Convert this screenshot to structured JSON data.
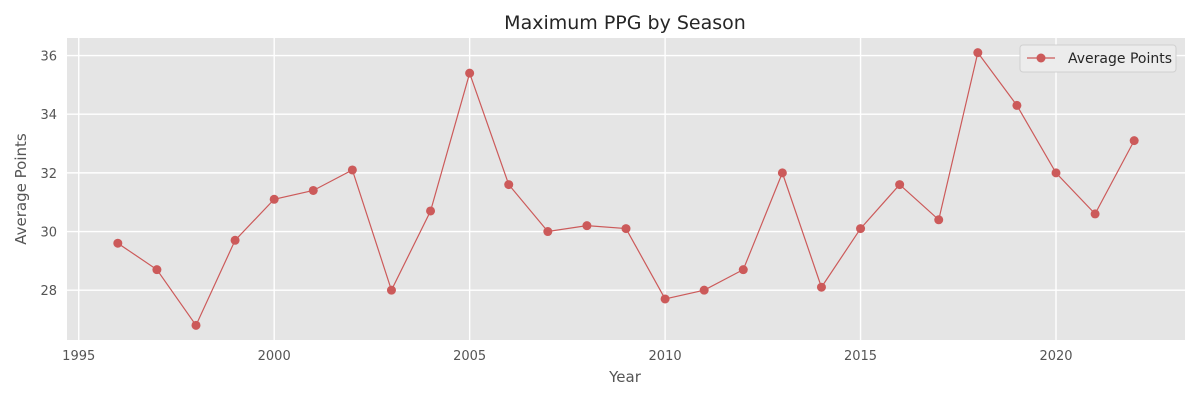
{
  "chart_data": {
    "type": "line",
    "title": "Maximum PPG by Season",
    "xlabel": "Year",
    "ylabel": "Average Points",
    "xlim": [
      1994.7,
      2023.3
    ],
    "ylim": [
      26.3,
      36.6
    ],
    "xticks": [
      1995,
      2000,
      2005,
      2010,
      2015,
      2020
    ],
    "yticks": [
      28,
      30,
      32,
      34,
      36
    ],
    "grid": true,
    "legend_position": "top-right",
    "colors": {
      "background": "#e5e5e5",
      "grid": "#ffffff",
      "series": "#cc5a5a"
    },
    "series": [
      {
        "name": "Average Points",
        "marker": "circle",
        "x": [
          1996,
          1997,
          1998,
          1999,
          2000,
          2001,
          2002,
          2003,
          2004,
          2005,
          2006,
          2007,
          2008,
          2009,
          2010,
          2011,
          2012,
          2013,
          2014,
          2015,
          2016,
          2017,
          2018,
          2019,
          2020,
          2021,
          2022
        ],
        "y": [
          29.6,
          28.7,
          26.8,
          29.7,
          31.1,
          31.4,
          32.1,
          28.0,
          30.7,
          35.4,
          31.6,
          30.0,
          30.2,
          30.1,
          27.7,
          28.0,
          28.7,
          32.0,
          28.1,
          30.1,
          31.6,
          30.4,
          36.1,
          34.3,
          32.0,
          30.6,
          33.1
        ]
      }
    ]
  }
}
